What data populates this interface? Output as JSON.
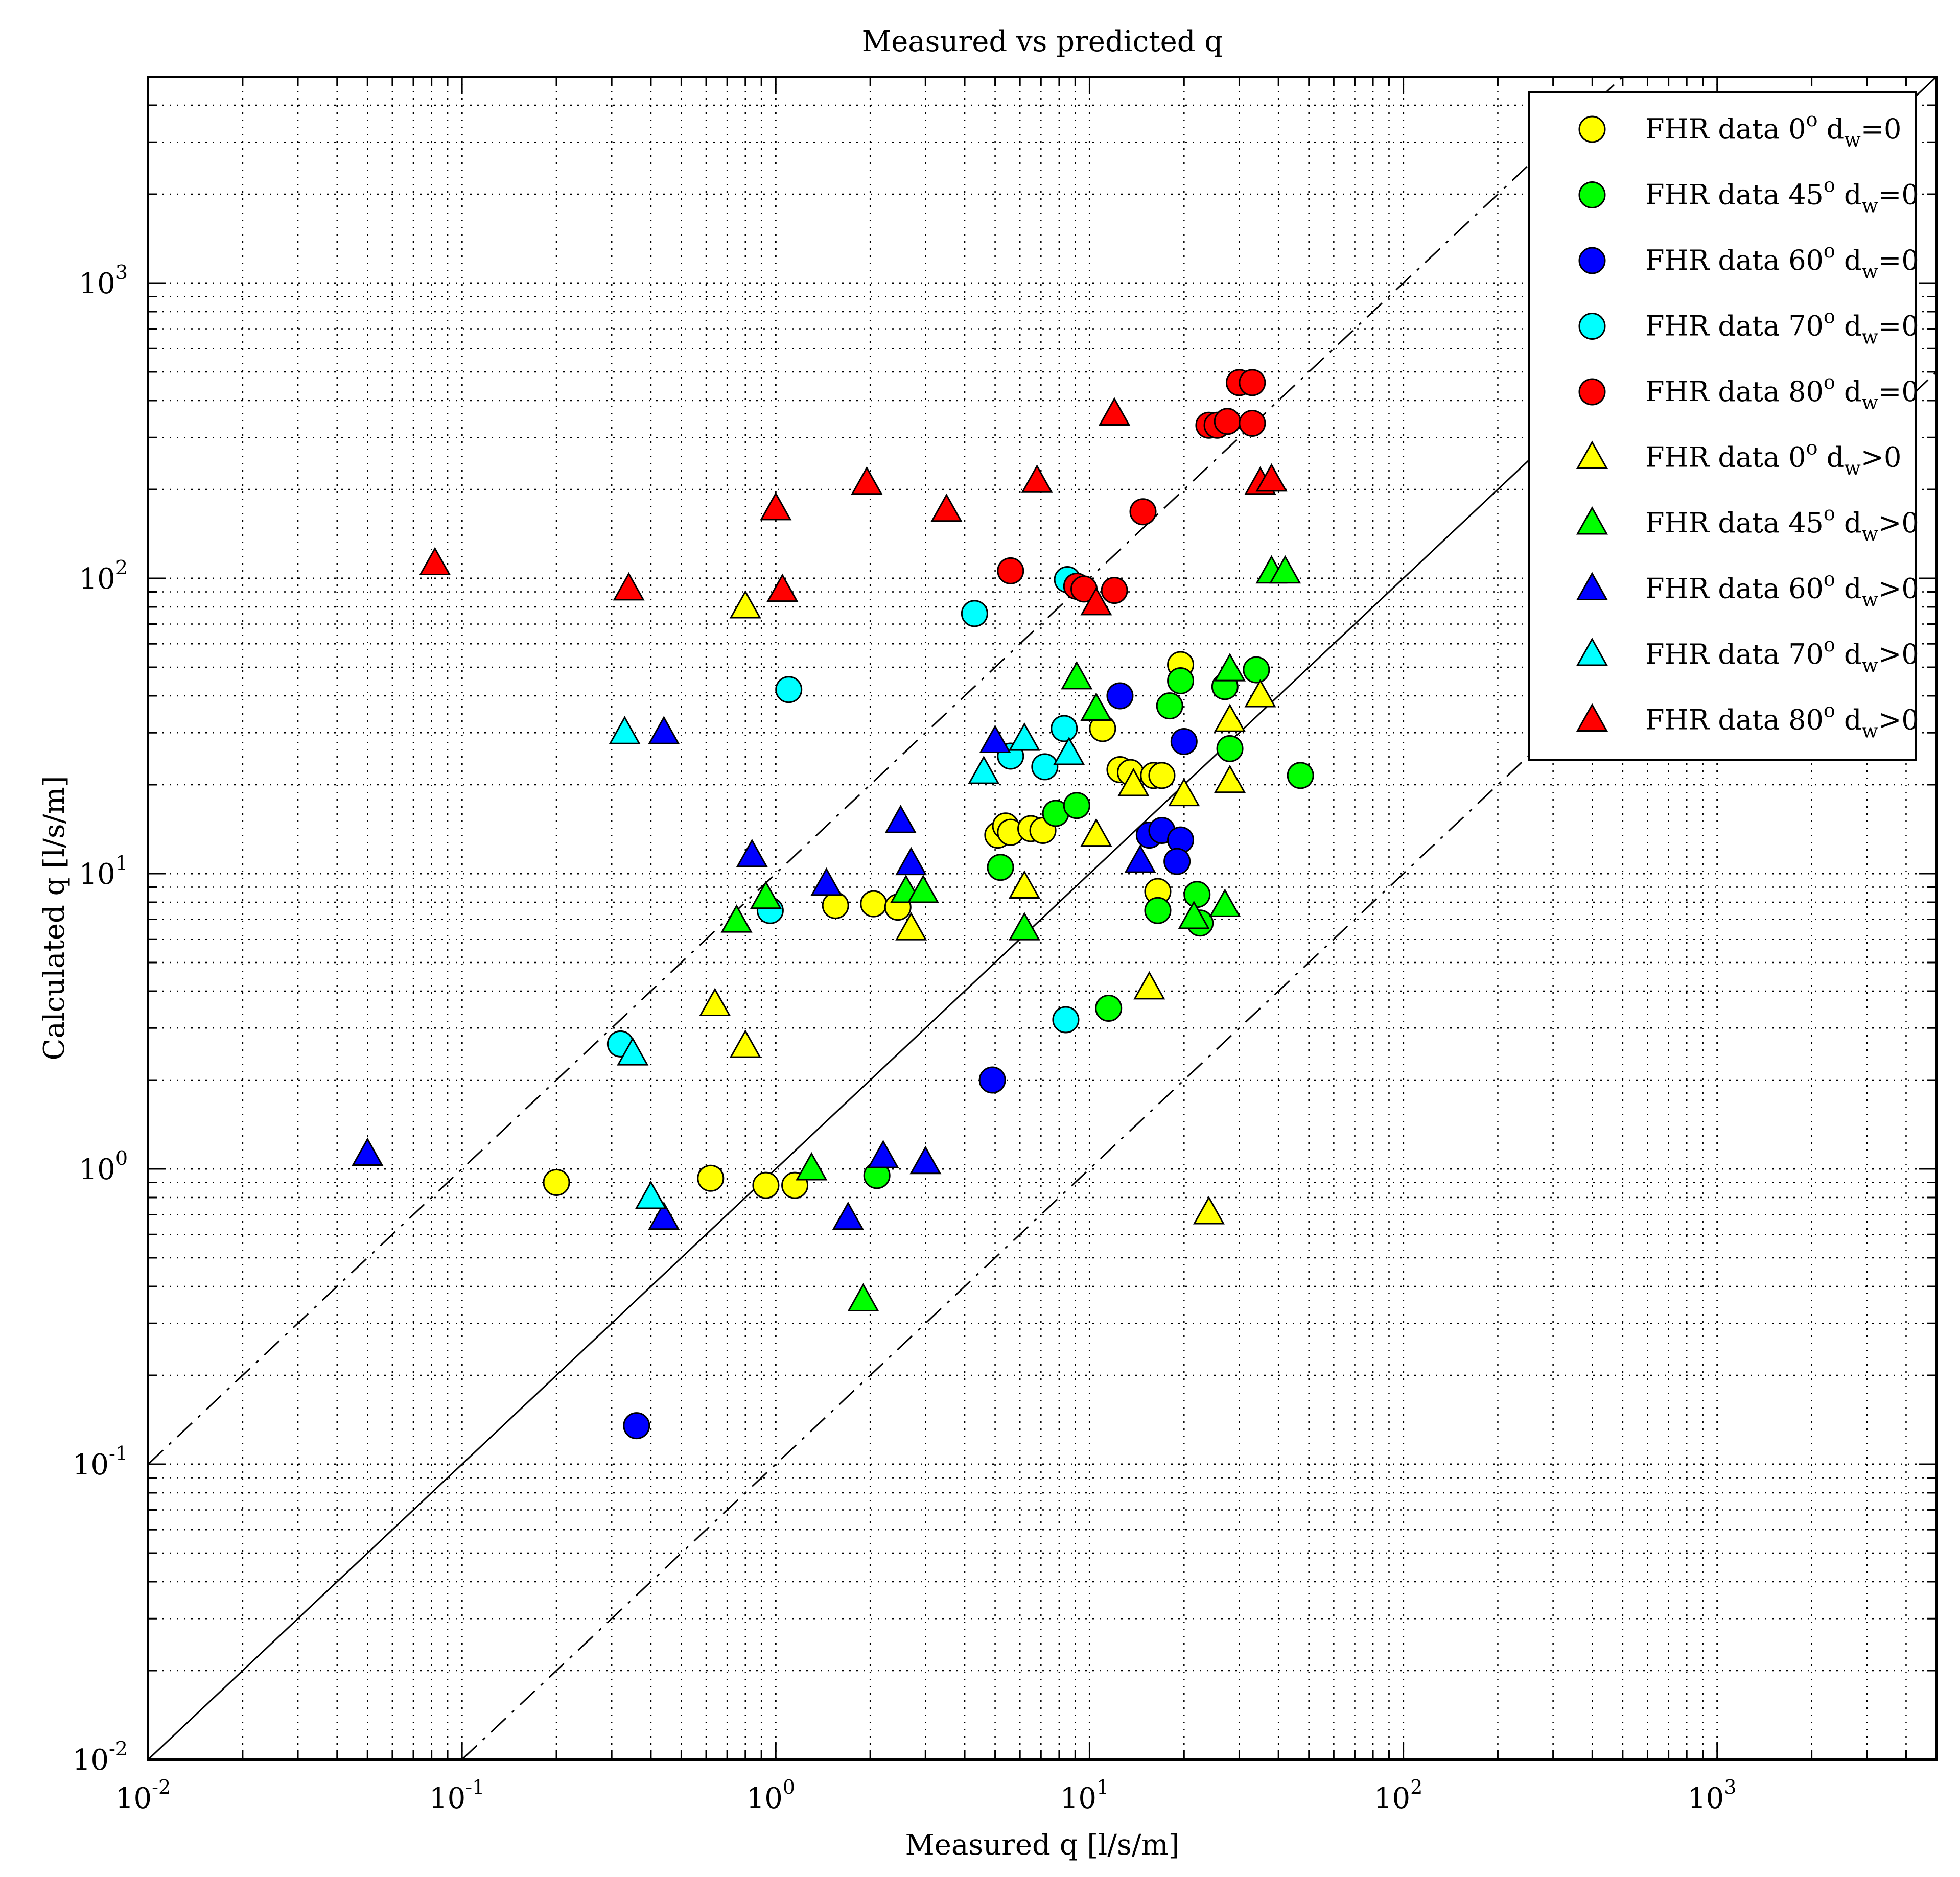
{
  "chart_data": {
    "type": "scatter",
    "title": "Measured vs predicted q",
    "xlabel": "Measured q [l/s/m]",
    "ylabel": "Calculated q [l/s/m]",
    "xscale": "log",
    "yscale": "log",
    "xlim": [
      0.01,
      5000
    ],
    "ylim": [
      0.01,
      5000
    ],
    "grid": true,
    "legend_position": "top-right",
    "x_ticks": [
      {
        "base": "10",
        "exp": "-2",
        "value": 0.01
      },
      {
        "base": "10",
        "exp": "-1",
        "value": 0.1
      },
      {
        "base": "10",
        "exp": "0",
        "value": 1
      },
      {
        "base": "10",
        "exp": "1",
        "value": 10
      },
      {
        "base": "10",
        "exp": "2",
        "value": 100
      },
      {
        "base": "10",
        "exp": "3",
        "value": 1000
      }
    ],
    "y_ticks": [
      {
        "base": "10",
        "exp": "-2",
        "value": 0.01
      },
      {
        "base": "10",
        "exp": "-1",
        "value": 0.1
      },
      {
        "base": "10",
        "exp": "0",
        "value": 1
      },
      {
        "base": "10",
        "exp": "1",
        "value": 10
      },
      {
        "base": "10",
        "exp": "2",
        "value": 100
      },
      {
        "base": "10",
        "exp": "3",
        "value": 1000
      }
    ],
    "reference_lines": [
      {
        "name": "y = x",
        "factor": 1,
        "style": "solid"
      },
      {
        "name": "y = 10x",
        "factor": 10,
        "style": "dash-dot"
      },
      {
        "name": "y = x/10",
        "factor": 0.1,
        "style": "dash-dot"
      }
    ],
    "series": [
      {
        "name": "FHR data 0° dw=0",
        "label": {
          "prefix": "FHR data 0",
          "deg": "o",
          "d": " d",
          "sub": "w",
          "suffix": "=0"
        },
        "marker": "circle",
        "color": "#ffff00",
        "points": [
          [
            0.2,
            0.9
          ],
          [
            0.62,
            0.93
          ],
          [
            0.93,
            0.88
          ],
          [
            1.15,
            0.88
          ],
          [
            1.55,
            7.8
          ],
          [
            2.05,
            7.9
          ],
          [
            2.45,
            7.7
          ],
          [
            5.1,
            13.5
          ],
          [
            5.4,
            14.5
          ],
          [
            5.6,
            13.8
          ],
          [
            6.5,
            14.2
          ],
          [
            7.1,
            14.0
          ],
          [
            11,
            31
          ],
          [
            12.5,
            22.5
          ],
          [
            13.5,
            22
          ],
          [
            16,
            21.5
          ],
          [
            17,
            21.5
          ],
          [
            19.5,
            51
          ],
          [
            16.5,
            8.7
          ]
        ]
      },
      {
        "name": "FHR data 45° dw=0",
        "label": {
          "prefix": "FHR data 45",
          "deg": "o",
          "d": " d",
          "sub": "w",
          "suffix": "=0"
        },
        "marker": "circle",
        "color": "#00ff00",
        "points": [
          [
            2.1,
            0.95
          ],
          [
            5.2,
            10.5
          ],
          [
            7.8,
            16
          ],
          [
            9.1,
            17
          ],
          [
            11.5,
            3.5
          ],
          [
            16.5,
            7.5
          ],
          [
            18,
            37
          ],
          [
            19.5,
            45
          ],
          [
            22,
            8.5
          ],
          [
            22.5,
            6.8
          ],
          [
            27,
            43
          ],
          [
            28,
            26.5
          ],
          [
            34,
            49
          ],
          [
            47,
            21.5
          ]
        ]
      },
      {
        "name": "FHR data 60° dw=0",
        "label": {
          "prefix": "FHR data 60",
          "deg": "o",
          "d": " d",
          "sub": "w",
          "suffix": "=0"
        },
        "marker": "circle",
        "color": "#0000ff",
        "points": [
          [
            0.36,
            0.135
          ],
          [
            4.9,
            2.0
          ],
          [
            12.5,
            40
          ],
          [
            15.5,
            13.5
          ],
          [
            17,
            14
          ],
          [
            19.5,
            13
          ],
          [
            19,
            11
          ],
          [
            20,
            28
          ]
        ]
      },
      {
        "name": "FHR data 70° dw=0",
        "label": {
          "prefix": "FHR data 70",
          "deg": "o",
          "d": " d",
          "sub": "w",
          "suffix": "=0"
        },
        "marker": "circle",
        "color": "#00ffff",
        "points": [
          [
            0.32,
            2.65
          ],
          [
            0.96,
            7.5
          ],
          [
            1.1,
            42
          ],
          [
            4.3,
            76
          ],
          [
            5.6,
            25
          ],
          [
            7.2,
            23
          ],
          [
            8.3,
            31
          ],
          [
            8.4,
            3.2
          ],
          [
            8.5,
            99
          ]
        ]
      },
      {
        "name": "FHR data 80° dw=0",
        "label": {
          "prefix": "FHR data 80",
          "deg": "o",
          "d": " d",
          "sub": "w",
          "suffix": "=0"
        },
        "marker": "circle",
        "color": "#ff0000",
        "points": [
          [
            5.6,
            106
          ],
          [
            9.1,
            94
          ],
          [
            9.6,
            92
          ],
          [
            12,
            91
          ],
          [
            14.8,
            168
          ],
          [
            24,
            330
          ],
          [
            25.5,
            330
          ],
          [
            27.5,
            340
          ],
          [
            30,
            460
          ],
          [
            33,
            460
          ],
          [
            33,
            335
          ]
        ]
      },
      {
        "name": "FHR data 0° dw>0",
        "label": {
          "prefix": "FHR data 0",
          "deg": "o",
          "d": " d",
          "sub": "w",
          "suffix": ">0"
        },
        "marker": "triangle",
        "color": "#ffff00",
        "points": [
          [
            0.64,
            3.6
          ],
          [
            0.8,
            80
          ],
          [
            0.8,
            2.6
          ],
          [
            2.7,
            6.5
          ],
          [
            6.2,
            9
          ],
          [
            10.5,
            13.5
          ],
          [
            13.8,
            20
          ],
          [
            15.5,
            4.1
          ],
          [
            20,
            18.5
          ],
          [
            24,
            0.71
          ],
          [
            28,
            33
          ],
          [
            28,
            20.5
          ],
          [
            35,
            40
          ]
        ]
      },
      {
        "name": "FHR data 45° dw>0",
        "label": {
          "prefix": "FHR data 45",
          "deg": "o",
          "d": " d",
          "sub": "w",
          "suffix": ">0"
        },
        "marker": "triangle",
        "color": "#00ff00",
        "points": [
          [
            0.75,
            6.9
          ],
          [
            0.93,
            8.3
          ],
          [
            1.3,
            1.0
          ],
          [
            1.9,
            0.36
          ],
          [
            2.6,
            8.7
          ],
          [
            2.95,
            8.7
          ],
          [
            6.2,
            6.5
          ],
          [
            9.1,
            46
          ],
          [
            10.5,
            36
          ],
          [
            21.5,
            7.1
          ],
          [
            27,
            7.8
          ],
          [
            28,
            49
          ],
          [
            38,
            105
          ],
          [
            42,
            105
          ]
        ]
      },
      {
        "name": "FHR data 60° dw>0",
        "label": {
          "prefix": "FHR data 60",
          "deg": "o",
          "d": " d",
          "sub": "w",
          "suffix": ">0"
        },
        "marker": "triangle",
        "color": "#0000ff",
        "points": [
          [
            0.05,
            1.12
          ],
          [
            0.44,
            30
          ],
          [
            0.44,
            0.68
          ],
          [
            0.84,
            11.5
          ],
          [
            1.45,
            9.2
          ],
          [
            1.7,
            0.68
          ],
          [
            2.2,
            1.1
          ],
          [
            2.5,
            15
          ],
          [
            2.7,
            10.8
          ],
          [
            3.0,
            1.05
          ],
          [
            5.0,
            28
          ],
          [
            14.5,
            11
          ]
        ]
      },
      {
        "name": "FHR data 70° dw>0",
        "label": {
          "prefix": "FHR data 70",
          "deg": "o",
          "d": " d",
          "sub": "w",
          "suffix": ">0"
        },
        "marker": "triangle",
        "color": "#00ffff",
        "points": [
          [
            0.33,
            30
          ],
          [
            0.35,
            2.45
          ],
          [
            0.4,
            0.8
          ],
          [
            4.6,
            22
          ],
          [
            6.2,
            28.5
          ],
          [
            8.6,
            25.5
          ]
        ]
      },
      {
        "name": "FHR data 80° dw>0",
        "label": {
          "prefix": "FHR data 80",
          "deg": "o",
          "d": " d",
          "sub": "w",
          "suffix": ">0"
        },
        "marker": "triangle",
        "color": "#ff0000",
        "points": [
          [
            0.082,
            112
          ],
          [
            0.34,
            92
          ],
          [
            1.0,
            172
          ],
          [
            1.05,
            91
          ],
          [
            1.95,
            210
          ],
          [
            3.5,
            170
          ],
          [
            6.8,
            213
          ],
          [
            10.5,
            82
          ],
          [
            12,
            360
          ],
          [
            35,
            210
          ],
          [
            38,
            215
          ]
        ]
      }
    ]
  }
}
